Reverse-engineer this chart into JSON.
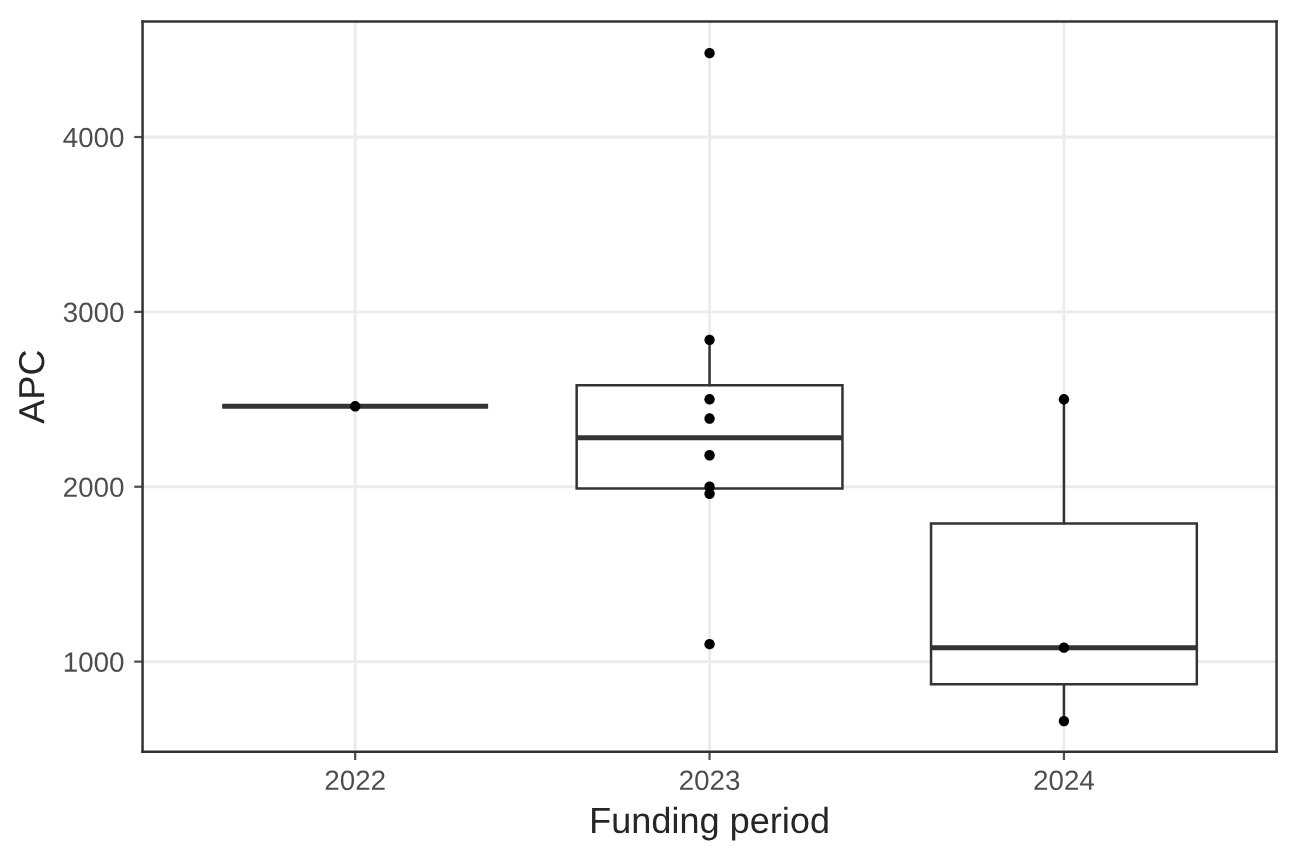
{
  "chart_data": {
    "type": "box",
    "xlabel": "Funding period",
    "ylabel": "APC",
    "x": [
      2022,
      2023,
      2024
    ],
    "xlim": [
      2021.4,
      2024.6
    ],
    "xticks": [
      2022,
      2023,
      2024
    ],
    "color": "#333333",
    "boxes": [
      {
        "low": 2460,
        "q1": 2460,
        "median": 2460,
        "q3": 2460,
        "high": 2460
      },
      {
        "low": 1960,
        "q1": 1990,
        "median": 2280,
        "q3": 2580,
        "high": 2840
      },
      {
        "low": 660,
        "q1": 870,
        "median": 1080,
        "q3": 1790,
        "high": 2500
      }
    ],
    "series": [
      {
        "type": "scatter",
        "color": "#000000",
        "x": [
          2022,
          2023,
          2023,
          2023,
          2023,
          2023,
          2023,
          2023,
          2023,
          2024,
          2024,
          2024
        ],
        "values": [
          2460,
          4480,
          2840,
          2500,
          2390,
          2180,
          2000,
          1960,
          1100,
          2500,
          1080,
          660
        ]
      }
    ],
    "ylim": [
      485,
      4660
    ],
    "yticks": [
      1000,
      2000,
      3000,
      4000
    ],
    "grid": true
  }
}
